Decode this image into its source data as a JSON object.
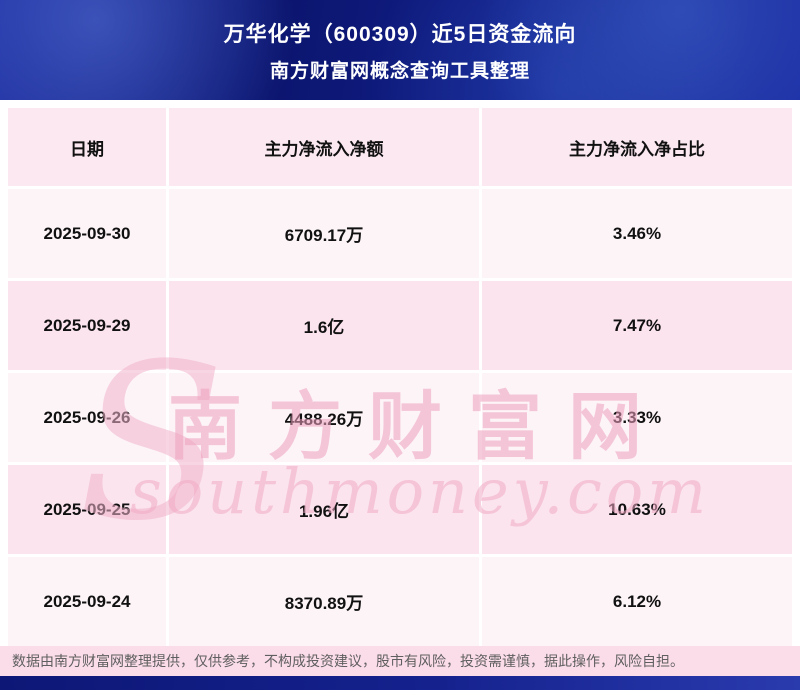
{
  "header": {
    "title_line1": "万华化学（600309）近5日资金流向",
    "title_line2": "南方财富网概念查询工具整理"
  },
  "chart_data": {
    "type": "table",
    "title": "万华化学（600309）近5日资金流向",
    "subtitle": "南方财富网概念查询工具整理",
    "columns": [
      "日期",
      "主力净流入净额",
      "主力净流入净占比"
    ],
    "rows": [
      [
        "2025-09-30",
        "6709.17万",
        "3.46%"
      ],
      [
        "2025-09-29",
        "1.6亿",
        "7.47%"
      ],
      [
        "2025-09-26",
        "4488.26万",
        "3.33%"
      ],
      [
        "2025-09-25",
        "1.96亿",
        "10.63%"
      ],
      [
        "2025-09-24",
        "8370.89万",
        "6.12%"
      ]
    ]
  },
  "watermark": {
    "logo": "S",
    "line1": "南方财富网",
    "line2": "southmoney.com"
  },
  "footer": {
    "disclaimer": "数据由南方财富网整理提供，仅供参考，不构成投资建议，股市有风险，投资需谨慎，据此操作，风险自担。"
  },
  "colors": {
    "banner_bg": "#101d86",
    "row_light": "#fdf4f8",
    "row_pink": "#fbe4ee",
    "header_row": "#fce8f1",
    "footer_bg": "#fbdce9",
    "watermark": "#ec9ebc"
  }
}
